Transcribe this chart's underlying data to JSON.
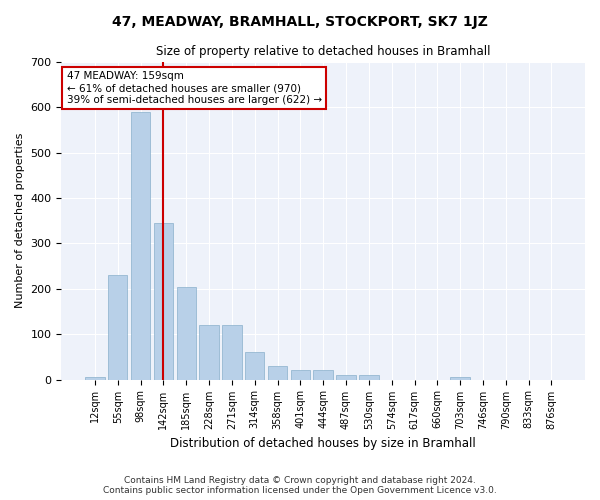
{
  "title": "47, MEADWAY, BRAMHALL, STOCKPORT, SK7 1JZ",
  "subtitle": "Size of property relative to detached houses in Bramhall",
  "xlabel": "Distribution of detached houses by size in Bramhall",
  "ylabel": "Number of detached properties",
  "bar_color": "#b8d0e8",
  "bar_edge_color": "#8ab0cc",
  "background_color": "#eef2fa",
  "grid_color": "#ffffff",
  "categories": [
    "12sqm",
    "55sqm",
    "98sqm",
    "142sqm",
    "185sqm",
    "228sqm",
    "271sqm",
    "314sqm",
    "358sqm",
    "401sqm",
    "444sqm",
    "487sqm",
    "530sqm",
    "574sqm",
    "617sqm",
    "660sqm",
    "703sqm",
    "746sqm",
    "790sqm",
    "833sqm",
    "876sqm"
  ],
  "values": [
    5,
    230,
    590,
    345,
    205,
    120,
    120,
    60,
    30,
    20,
    20,
    10,
    10,
    0,
    0,
    0,
    5,
    0,
    0,
    0,
    0
  ],
  "ylim": [
    0,
    700
  ],
  "yticks": [
    0,
    100,
    200,
    300,
    400,
    500,
    600,
    700
  ],
  "property_line_x": 3.0,
  "annotation_line1": "47 MEADWAY: 159sqm",
  "annotation_line2": "← 61% of detached houses are smaller (970)",
  "annotation_line3": "39% of semi-detached houses are larger (622) →",
  "annotation_box_color": "#ffffff",
  "annotation_box_edge": "#cc0000",
  "line_color": "#cc0000",
  "footer": "Contains HM Land Registry data © Crown copyright and database right 2024.\nContains public sector information licensed under the Open Government Licence v3.0."
}
